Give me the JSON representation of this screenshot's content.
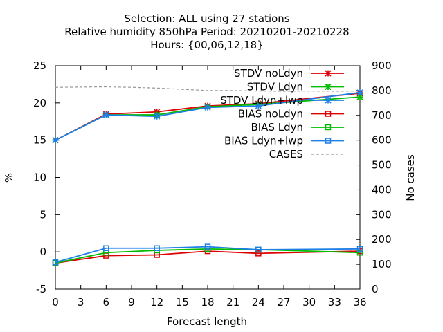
{
  "chart_data": {
    "type": "line",
    "title_lines": [
      "Selection: ALL using    27 stations",
      "Relative humidity 850hPa   Period: 20210201-20210228",
      "Hours: {00,06,12,18}"
    ],
    "xlabel": "Forecast length",
    "ylabel": "%",
    "y2label": "No cases",
    "xlim": [
      0,
      36
    ],
    "ylim": [
      -5,
      25
    ],
    "y2lim": [
      0,
      900
    ],
    "x_ticks": [
      0,
      3,
      6,
      9,
      12,
      15,
      18,
      21,
      24,
      27,
      30,
      33,
      36
    ],
    "y_ticks": [
      -5,
      0,
      5,
      10,
      15,
      20,
      25
    ],
    "y2_ticks": [
      0,
      100,
      200,
      300,
      400,
      500,
      600,
      700,
      800,
      900
    ],
    "grid": false,
    "legend_position": "top-right",
    "series": [
      {
        "name": "STDV noLdyn",
        "axis": "y",
        "color": "#dd0000",
        "marker": "star",
        "x": [
          0,
          6,
          12,
          18,
          24,
          36
        ],
        "values": [
          15.0,
          18.5,
          18.8,
          19.6,
          19.9,
          21.3
        ]
      },
      {
        "name": "STDV Ldyn",
        "axis": "y",
        "color": "#00bb00",
        "marker": "star",
        "x": [
          0,
          6,
          12,
          18,
          24,
          36
        ],
        "values": [
          15.0,
          18.4,
          18.4,
          19.5,
          19.8,
          20.8
        ]
      },
      {
        "name": "STDV Ldyn+lwp",
        "axis": "y",
        "color": "#1e7fe6",
        "marker": "star",
        "x": [
          0,
          6,
          12,
          18,
          24,
          36
        ],
        "values": [
          15.0,
          18.4,
          18.2,
          19.4,
          19.6,
          21.4
        ]
      },
      {
        "name": "BIAS noLdyn",
        "axis": "y",
        "color": "#dd0000",
        "marker": "square",
        "x": [
          0,
          6,
          12,
          18,
          24,
          36
        ],
        "values": [
          -1.5,
          -0.5,
          -0.4,
          0.1,
          -0.2,
          0.1
        ]
      },
      {
        "name": "BIAS Ldyn",
        "axis": "y",
        "color": "#00bb00",
        "marker": "square",
        "x": [
          0,
          6,
          12,
          18,
          24,
          36
        ],
        "values": [
          -1.5,
          -0.1,
          0.2,
          0.4,
          0.3,
          -0.1
        ]
      },
      {
        "name": "BIAS Ldyn+lwp",
        "axis": "y",
        "color": "#1e7fe6",
        "marker": "square",
        "x": [
          0,
          6,
          12,
          18,
          24,
          36
        ],
        "values": [
          -1.4,
          0.5,
          0.5,
          0.7,
          0.3,
          0.4
        ]
      },
      {
        "name": "CASES",
        "axis": "y2",
        "color": "#999999",
        "marker": "none",
        "dashed": true,
        "x": [
          0,
          3,
          6,
          9,
          12,
          15,
          18,
          21,
          24,
          27,
          30,
          33,
          36
        ],
        "values": [
          813,
          814,
          815,
          813,
          810,
          805,
          800,
          800,
          798,
          797,
          798,
          797,
          798
        ]
      }
    ]
  }
}
